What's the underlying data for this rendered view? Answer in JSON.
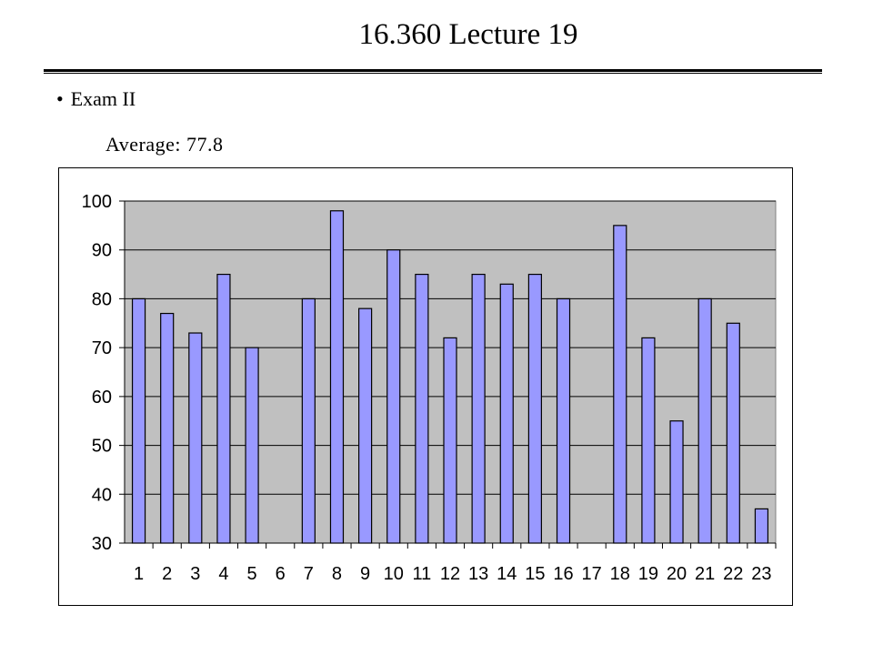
{
  "slide": {
    "title": "16.360 Lecture 19",
    "bullet_text": "Exam II",
    "average_text": "Average: 77.8"
  },
  "colors": {
    "plot_background": "#c0c0c0",
    "bar_fill": "#9999ff",
    "bar_stroke": "#000000",
    "gridline": "#000000"
  },
  "chart_data": {
    "type": "bar",
    "title": "",
    "xlabel": "",
    "ylabel": "",
    "categories": [
      "1",
      "2",
      "3",
      "4",
      "5",
      "6",
      "7",
      "8",
      "9",
      "10",
      "11",
      "12",
      "13",
      "14",
      "15",
      "16",
      "17",
      "18",
      "19",
      "20",
      "21",
      "22",
      "23"
    ],
    "values": [
      80,
      77,
      73,
      85,
      70,
      null,
      80,
      98,
      78,
      90,
      85,
      72,
      85,
      83,
      85,
      80,
      null,
      95,
      72,
      55,
      80,
      75,
      37
    ],
    "ylim": [
      30,
      100
    ],
    "yticks": [
      30,
      40,
      50,
      60,
      70,
      80,
      90,
      100
    ],
    "grid": true,
    "legend": "none"
  }
}
